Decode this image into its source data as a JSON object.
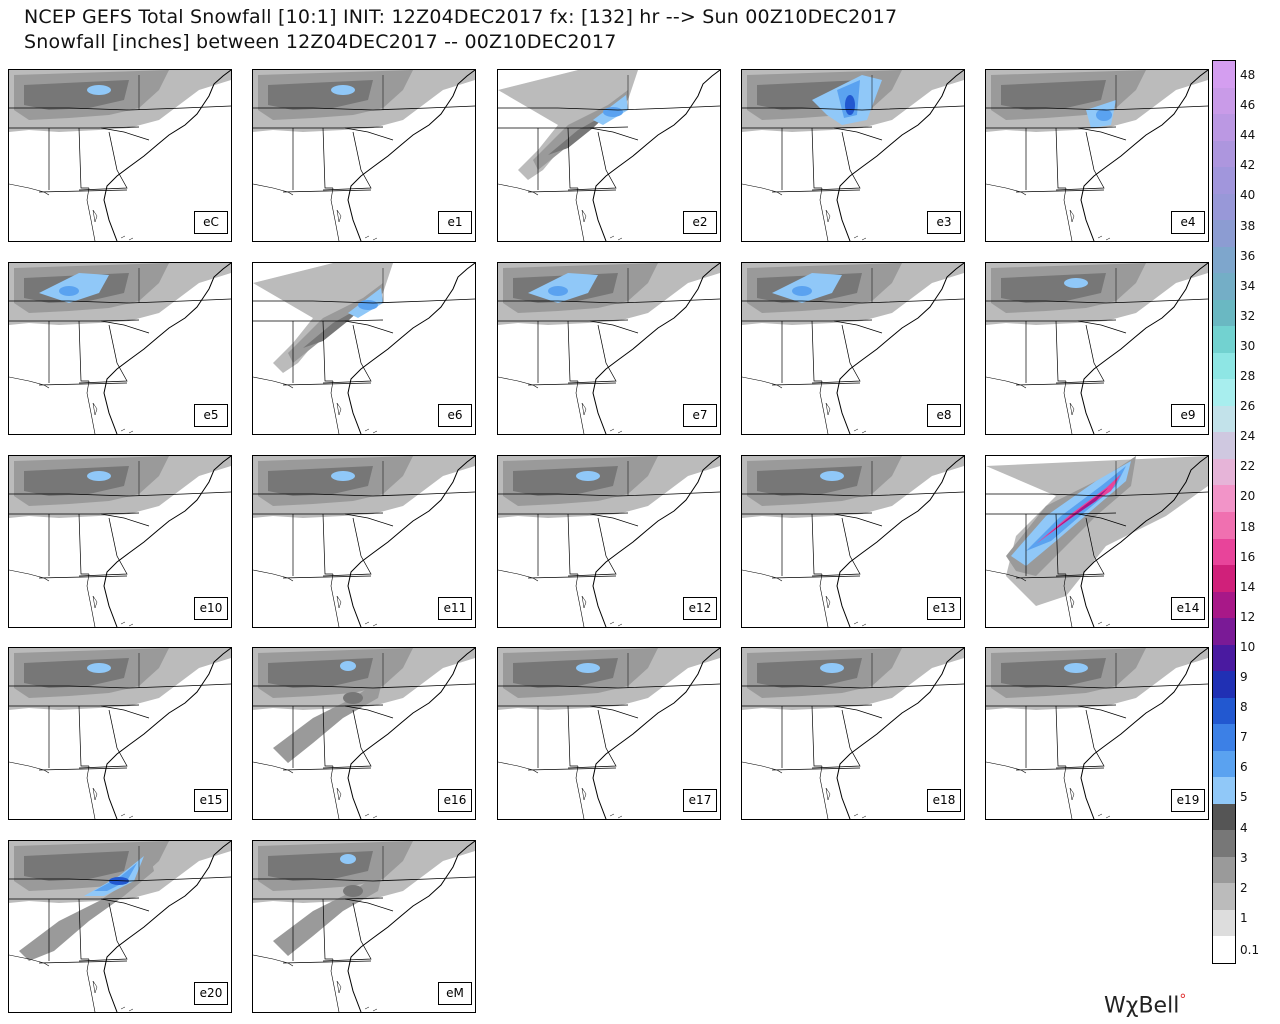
{
  "title_line1": "NCEP GEFS Total Snowfall [10:1] INIT: 12Z04DEC2017 fx: [132] hr --> Sun 00Z10DEC2017",
  "title_line2": "Snowfall [inches] between 12Z04DEC2017 -- 00Z10DEC2017",
  "logo": "WχBell",
  "panels": [
    {
      "label": "eC",
      "snow": "light-north"
    },
    {
      "label": "e1",
      "snow": "light-north"
    },
    {
      "label": "e2",
      "snow": "diagonal-moderate"
    },
    {
      "label": "e3",
      "snow": "heavy-northeast"
    },
    {
      "label": "e4",
      "snow": "moderate-northeast"
    },
    {
      "label": "e5",
      "snow": "moderate-north"
    },
    {
      "label": "e6",
      "snow": "diagonal-moderate"
    },
    {
      "label": "e7",
      "snow": "moderate-north"
    },
    {
      "label": "e8",
      "snow": "moderate-north"
    },
    {
      "label": "e9",
      "snow": "light-north"
    },
    {
      "label": "e10",
      "snow": "light-north"
    },
    {
      "label": "e11",
      "snow": "light-north"
    },
    {
      "label": "e12",
      "snow": "light-north"
    },
    {
      "label": "e13",
      "snow": "light-north"
    },
    {
      "label": "e14",
      "snow": "heavy-diagonal"
    },
    {
      "label": "e15",
      "snow": "light-north"
    },
    {
      "label": "e16",
      "snow": "light-diagonal"
    },
    {
      "label": "e17",
      "snow": "light-north"
    },
    {
      "label": "e18",
      "snow": "light-north"
    },
    {
      "label": "e19",
      "snow": "light-north"
    },
    {
      "label": "e20",
      "snow": "moderate-diagonal"
    },
    {
      "label": "eM",
      "snow": "light-diagonal"
    }
  ],
  "colorbar": {
    "labels": [
      "48",
      "46",
      "44",
      "42",
      "40",
      "38",
      "36",
      "34",
      "32",
      "30",
      "28",
      "26",
      "24",
      "22",
      "20",
      "18",
      "16",
      "14",
      "12",
      "10",
      "9",
      "8",
      "7",
      "6",
      "5",
      "4",
      "3",
      "2",
      "1",
      "0.1"
    ],
    "colors": [
      "#d49ef0",
      "#c99be8",
      "#bb98e3",
      "#ad96de",
      "#a196dc",
      "#9898d8",
      "#8c9cd2",
      "#7ea6cc",
      "#74aec6",
      "#6ab8c2",
      "#72d2d0",
      "#8ee6e4",
      "#a8eeee",
      "#c2e2ea",
      "#cfc8e0",
      "#e6b4d8",
      "#f294c8",
      "#f070b0",
      "#e8449a",
      "#d0207a",
      "#a81888",
      "#7a1a96",
      "#4a1aa0",
      "#2030b4",
      "#2258d0",
      "#3c80e6",
      "#5aa2f0",
      "#90c8f8",
      "#555555",
      "#777777",
      "#9a9a9a",
      "#bbbbbb",
      "#dddddd",
      "#ffffff"
    ]
  }
}
